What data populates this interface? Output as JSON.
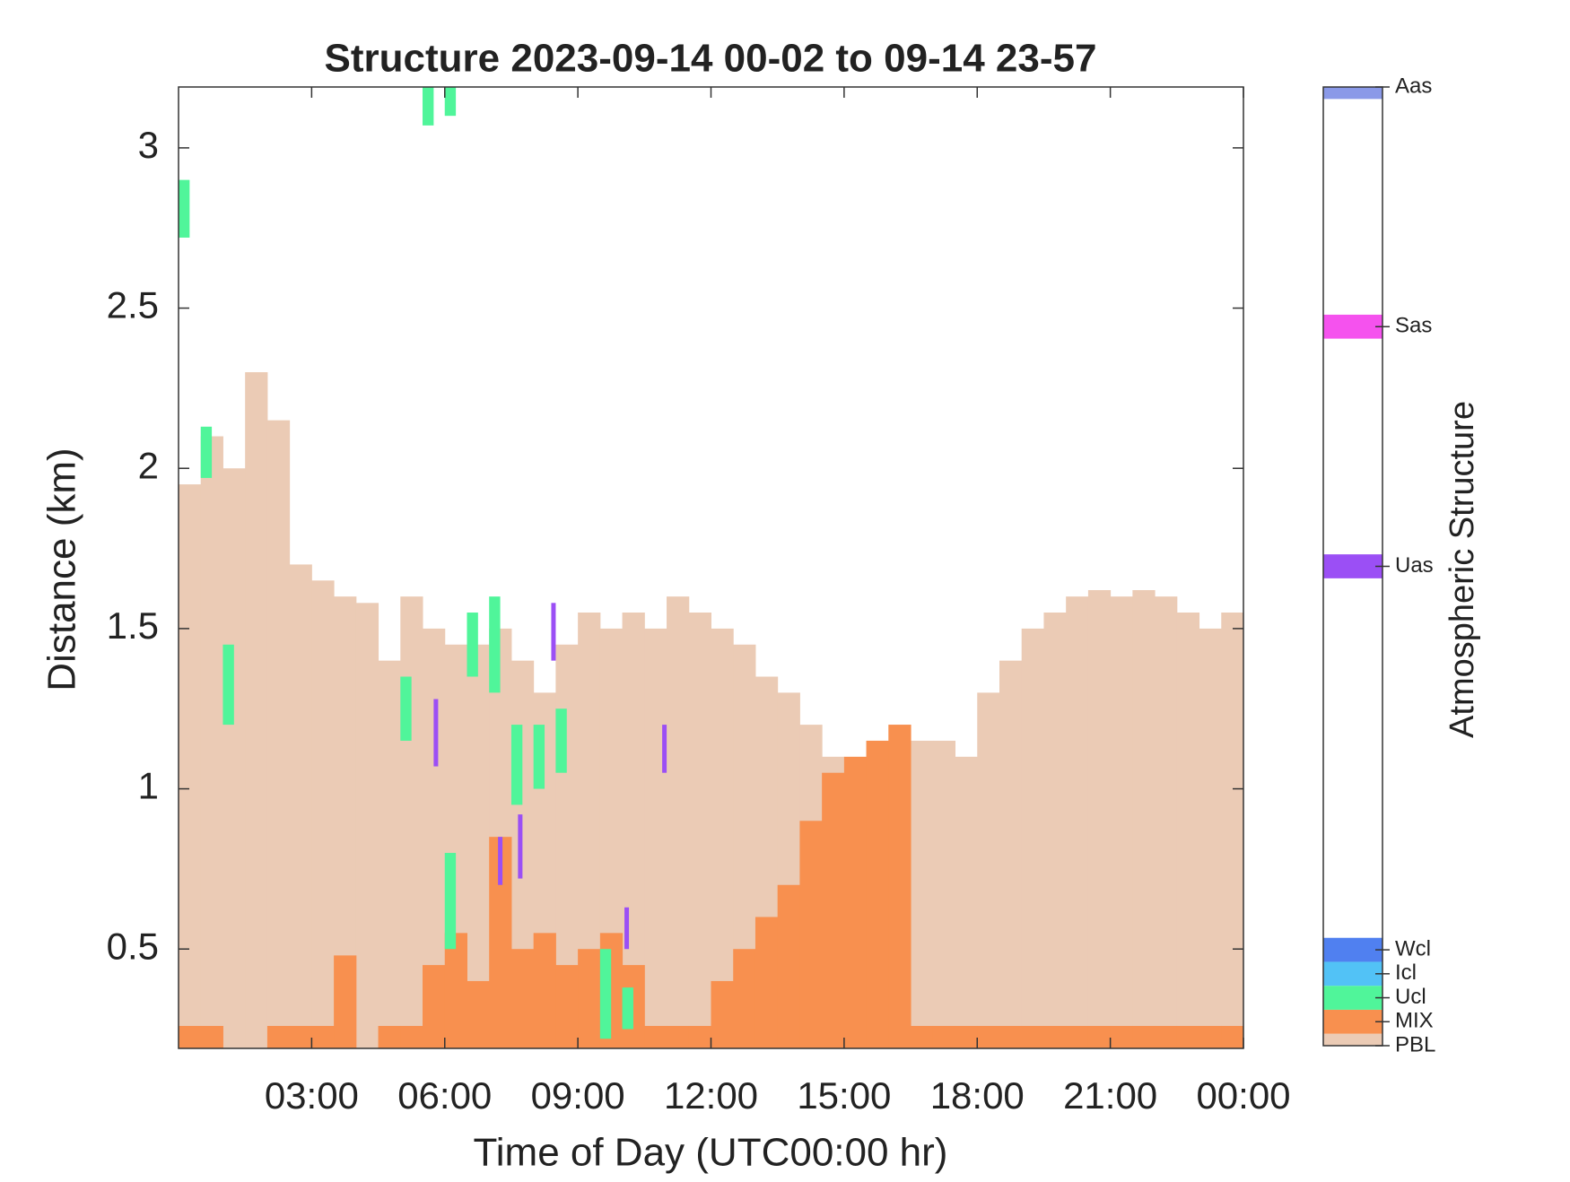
{
  "chart_data": {
    "type": "structure",
    "title": "Structure 2023-09-14 00-02 to 09-14 23-57",
    "xlabel": "Time of Day (UTC00:00 hr)",
    "ylabel": "Distance (km)",
    "xlim": [
      0,
      24
    ],
    "ylim": [
      0.19,
      3.19
    ],
    "xticks": [
      {
        "value": 3,
        "label": "03:00"
      },
      {
        "value": 6,
        "label": "06:00"
      },
      {
        "value": 9,
        "label": "09:00"
      },
      {
        "value": 12,
        "label": "12:00"
      },
      {
        "value": 15,
        "label": "15:00"
      },
      {
        "value": 18,
        "label": "18:00"
      },
      {
        "value": 21,
        "label": "21:00"
      },
      {
        "value": 24,
        "label": "00:00"
      }
    ],
    "yticks": [
      0.5,
      1,
      1.5,
      2,
      2.5,
      3
    ],
    "x": [
      0,
      0.5,
      1,
      1.5,
      2,
      2.5,
      3,
      3.5,
      4,
      4.5,
      5,
      5.5,
      6,
      6.5,
      7,
      7.5,
      8,
      8.5,
      9,
      9.5,
      10,
      10.5,
      11,
      11.5,
      12,
      12.5,
      13,
      13.5,
      14,
      14.5,
      15,
      15.5,
      16,
      16.5,
      17,
      17.5,
      18,
      18.5,
      19,
      19.5,
      20,
      20.5,
      21,
      21.5,
      22,
      22.5,
      23,
      23.5
    ],
    "series": [
      {
        "color": "#ebcbb5",
        "values": [
          1.95,
          2.1,
          2.0,
          2.3,
          2.15,
          1.7,
          1.65,
          1.6,
          1.58,
          1.4,
          1.6,
          1.5,
          1.45,
          1.45,
          1.5,
          1.4,
          1.3,
          1.45,
          1.55,
          1.5,
          1.55,
          1.5,
          1.6,
          1.55,
          1.5,
          1.45,
          1.35,
          1.3,
          1.2,
          1.1,
          1.05,
          1.15,
          1.2,
          1.15,
          1.15,
          1.1,
          1.3,
          1.4,
          1.5,
          1.55,
          1.6,
          1.62,
          1.6,
          1.62,
          1.6,
          1.55,
          1.5,
          1.55
        ]
      },
      {
        "color": "#f8904f",
        "values": [
          0.26,
          0.26,
          null,
          null,
          0.26,
          0.26,
          0.26,
          0.48,
          null,
          0.26,
          0.26,
          0.45,
          0.55,
          0.4,
          0.85,
          0.5,
          0.55,
          0.45,
          0.5,
          0.55,
          0.45,
          0.26,
          0.26,
          0.26,
          0.4,
          0.5,
          0.6,
          0.7,
          0.9,
          1.05,
          1.1,
          1.15,
          1.2,
          0.26,
          0.26,
          0.26,
          0.26,
          0.26,
          0.26,
          0.26,
          0.26,
          0.26,
          0.26,
          0.26,
          0.26,
          0.26,
          0.26,
          0.26
        ]
      }
    ],
    "segments": [
      {
        "color": "#50f59a",
        "x": [
          0,
          0.5,
          1,
          5.5,
          6,
          5,
          6.5,
          7,
          7.5,
          8,
          8.5,
          6,
          9.5,
          10
        ],
        "bottom": [
          2.72,
          1.97,
          1.2,
          3.07,
          3.1,
          1.15,
          1.35,
          1.3,
          0.95,
          1.0,
          1.05,
          0.5,
          0.22,
          0.25
        ],
        "top": [
          2.9,
          2.13,
          1.45,
          3.19,
          3.19,
          1.35,
          1.55,
          1.6,
          1.2,
          1.2,
          1.25,
          0.8,
          0.5,
          0.38
        ]
      },
      {
        "color": "#9b4ff5",
        "x": [
          5.75,
          7.2,
          8.4,
          10.9,
          10.05,
          7.65
        ],
        "bottom": [
          1.07,
          0.7,
          1.4,
          1.05,
          0.5,
          0.72
        ],
        "top": [
          1.28,
          0.85,
          1.58,
          1.2,
          0.63,
          0.92
        ]
      }
    ],
    "colorbar": {
      "label": "Atmospheric Structure",
      "clim": [
        0,
        40
      ],
      "ticks": [
        {
          "value": 0,
          "label": "PBL"
        },
        {
          "value": 1,
          "label": "MIX"
        },
        {
          "value": 2,
          "label": "Ucl"
        },
        {
          "value": 3,
          "label": "Icl"
        },
        {
          "value": 4,
          "label": "Wcl"
        },
        {
          "value": 20,
          "label": "Uas"
        },
        {
          "value": 30,
          "label": "Sas"
        },
        {
          "value": 40,
          "label": "Aas"
        }
      ],
      "colors": [
        "#ebcbb5",
        "#f8904f",
        "#50f59a",
        "#52c2f6",
        "#5080f0",
        "#9b4ff5",
        "#f552ee",
        "#8a99e8"
      ]
    }
  }
}
